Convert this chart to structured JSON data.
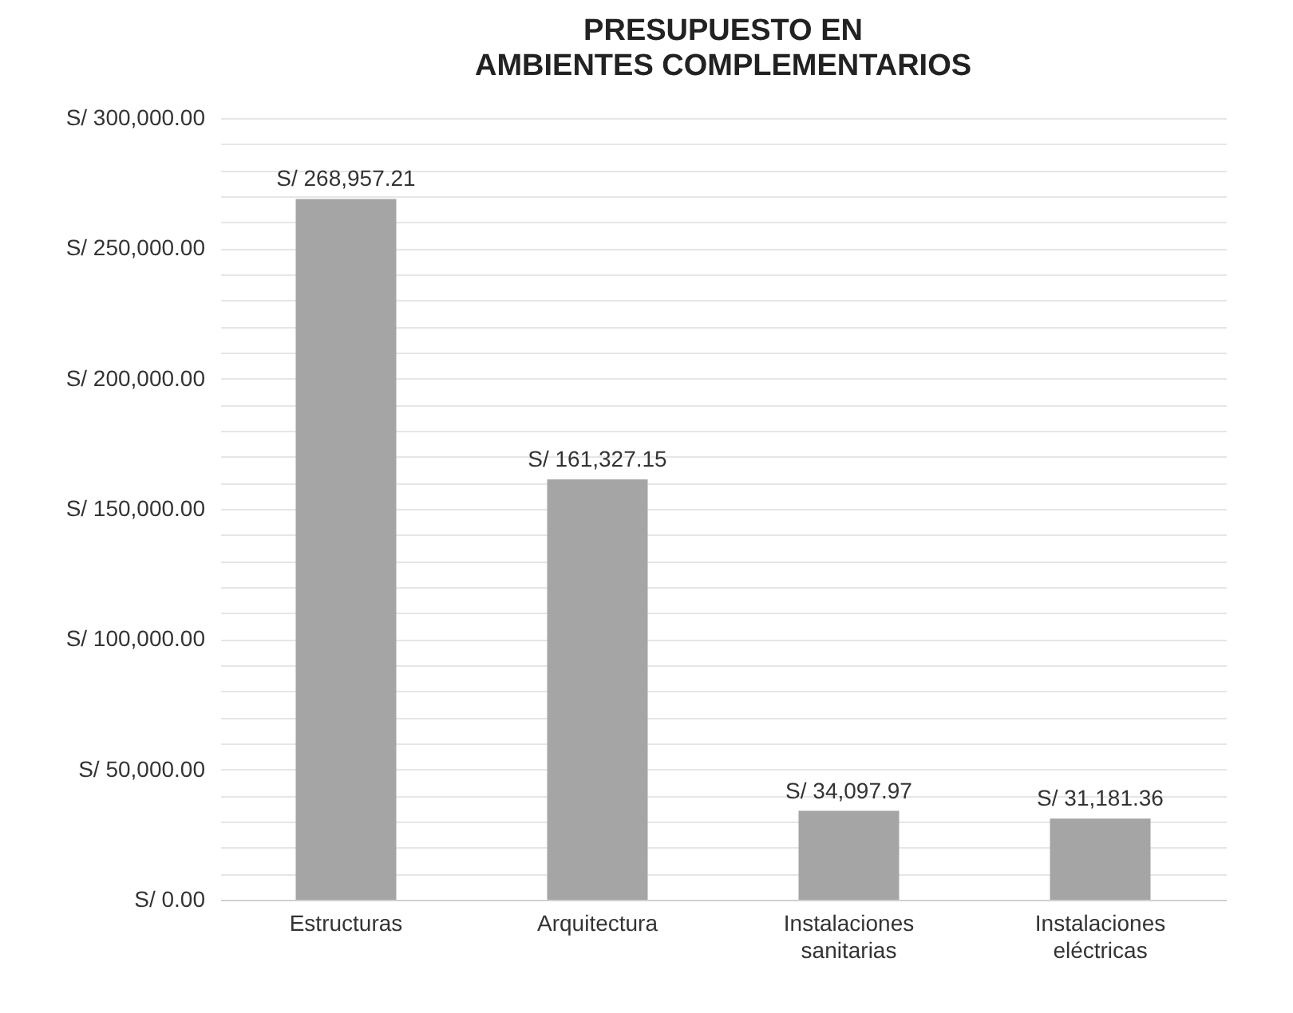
{
  "chart_data": {
    "type": "bar",
    "title": "PRESUPUESTO EN AMBIENTES COMPLEMENTARIOS",
    "categories": [
      "Estructuras",
      "Arquitectura",
      "Instalaciones sanitarias",
      "Instalaciones eléctricas"
    ],
    "values": [
      268957.21,
      161327.15,
      34097.97,
      31181.36
    ],
    "value_labels": [
      "S/ 268,957.21",
      "S/ 161,327.15",
      "S/ 34,097.97",
      "S/ 31,181.36"
    ],
    "color": "#a5a5a5",
    "ylim": [
      0,
      300000
    ],
    "yticks": [
      {
        "value": 0,
        "label": "S/ 0.00"
      },
      {
        "value": 10000,
        "label": null
      },
      {
        "value": 20000,
        "label": null
      },
      {
        "value": 30000,
        "label": null
      },
      {
        "value": 40000,
        "label": null
      },
      {
        "value": 50000,
        "label": "S/ 50,000.00"
      },
      {
        "value": 60000,
        "label": null
      },
      {
        "value": 70000,
        "label": null
      },
      {
        "value": 80000,
        "label": null
      },
      {
        "value": 90000,
        "label": null
      },
      {
        "value": 100000,
        "label": "S/ 100,000.00"
      },
      {
        "value": 110000,
        "label": null
      },
      {
        "value": 120000,
        "label": null
      },
      {
        "value": 130000,
        "label": null
      },
      {
        "value": 140000,
        "label": null
      },
      {
        "value": 150000,
        "label": "S/ 150,000.00"
      },
      {
        "value": 160000,
        "label": null
      },
      {
        "value": 170000,
        "label": null
      },
      {
        "value": 180000,
        "label": null
      },
      {
        "value": 190000,
        "label": null
      },
      {
        "value": 200000,
        "label": "S/ 200,000.00"
      },
      {
        "value": 210000,
        "label": null
      },
      {
        "value": 220000,
        "label": null
      },
      {
        "value": 230000,
        "label": null
      },
      {
        "value": 240000,
        "label": null
      },
      {
        "value": 250000,
        "label": "S/ 250,000.00"
      },
      {
        "value": 260000,
        "label": null
      },
      {
        "value": 270000,
        "label": null
      },
      {
        "value": 280000,
        "label": null
      },
      {
        "value": 290000,
        "label": null
      },
      {
        "value": 300000,
        "label": "S/ 300,000.00"
      }
    ],
    "grid": true
  }
}
